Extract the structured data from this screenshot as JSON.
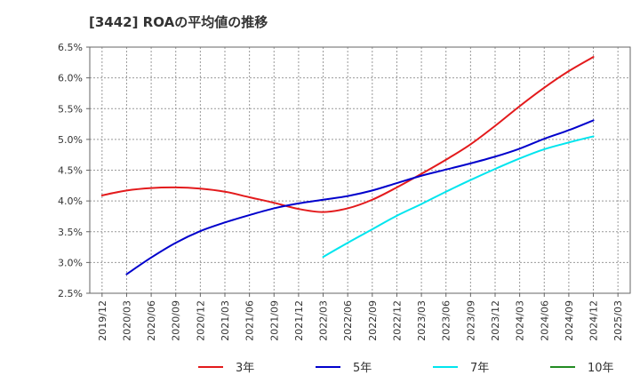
{
  "chart_data": {
    "type": "line",
    "title": "[3442]  ROAの平均値の推移",
    "x_tick_labels": [
      "2019/12",
      "2020/03",
      "2020/06",
      "2020/09",
      "2020/12",
      "2021/03",
      "2021/06",
      "2021/09",
      "2021/12",
      "2022/03",
      "2022/06",
      "2022/09",
      "2022/12",
      "2023/03",
      "2023/06",
      "2023/09",
      "2023/12",
      "2024/03",
      "2024/06",
      "2024/09",
      "2024/12",
      "2025/03"
    ],
    "y_tick_labels": [
      "2.5%",
      "3.0%",
      "3.5%",
      "4.0%",
      "4.5%",
      "5.0%",
      "5.5%",
      "6.0%",
      "6.5%"
    ],
    "ylim": [
      2.5,
      6.5
    ],
    "grid": true,
    "legend_position": "bottom",
    "series": [
      {
        "name": "3年",
        "color": "#e31a1c",
        "x": [
          "2019/12",
          "2020/03",
          "2020/06",
          "2020/09",
          "2020/12",
          "2021/03",
          "2021/06",
          "2021/09",
          "2021/12",
          "2022/03",
          "2022/06",
          "2022/09",
          "2022/12",
          "2023/03",
          "2023/06",
          "2023/09",
          "2023/12",
          "2024/03",
          "2024/06",
          "2024/09",
          "2024/12"
        ],
        "values": [
          4.09,
          4.17,
          4.21,
          4.22,
          4.2,
          4.15,
          4.06,
          3.97,
          3.87,
          3.82,
          3.88,
          4.02,
          4.22,
          4.44,
          4.67,
          4.92,
          5.22,
          5.54,
          5.84,
          6.11,
          6.34
        ]
      },
      {
        "name": "5年",
        "color": "#0000cc",
        "x": [
          "2020/03",
          "2020/06",
          "2020/09",
          "2020/12",
          "2021/03",
          "2021/06",
          "2021/09",
          "2021/12",
          "2022/03",
          "2022/06",
          "2022/09",
          "2022/12",
          "2023/03",
          "2023/06",
          "2023/09",
          "2023/12",
          "2024/03",
          "2024/06",
          "2024/09",
          "2024/12"
        ],
        "values": [
          2.81,
          3.08,
          3.32,
          3.51,
          3.65,
          3.77,
          3.88,
          3.96,
          4.02,
          4.08,
          4.17,
          4.29,
          4.41,
          4.51,
          4.61,
          4.72,
          4.85,
          5.01,
          5.15,
          5.31
        ]
      },
      {
        "name": "7年",
        "color": "#00e5ee",
        "x": [
          "2022/03",
          "2022/06",
          "2022/09",
          "2022/12",
          "2023/03",
          "2023/06",
          "2023/09",
          "2023/12",
          "2024/03",
          "2024/06",
          "2024/09",
          "2024/12"
        ],
        "values": [
          3.09,
          3.32,
          3.54,
          3.76,
          3.95,
          4.15,
          4.34,
          4.52,
          4.69,
          4.84,
          4.95,
          5.05
        ]
      },
      {
        "name": "10年",
        "color": "#228b22",
        "x": [],
        "values": []
      }
    ]
  }
}
